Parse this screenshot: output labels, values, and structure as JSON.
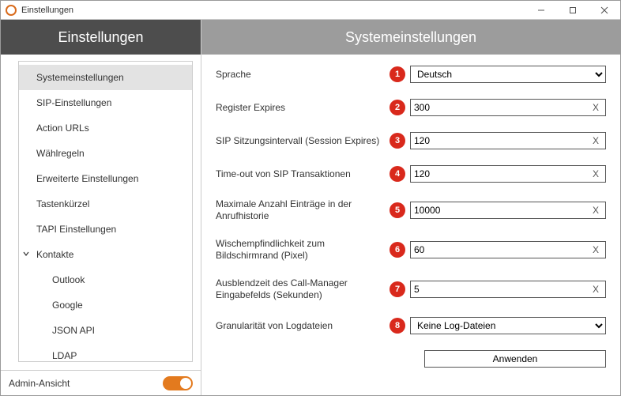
{
  "window": {
    "title": "Einstellungen"
  },
  "sidebar": {
    "header": "Einstellungen",
    "items": [
      {
        "label": "Systemeinstellungen",
        "active": true
      },
      {
        "label": "SIP-Einstellungen"
      },
      {
        "label": "Action URLs"
      },
      {
        "label": "Wählregeln"
      },
      {
        "label": "Erweiterte Einstellungen"
      },
      {
        "label": "Tastenkürzel"
      },
      {
        "label": "TAPI Einstellungen"
      },
      {
        "label": "Kontakte",
        "expanded": true,
        "children": [
          {
            "label": "Outlook"
          },
          {
            "label": "Google"
          },
          {
            "label": "JSON API"
          },
          {
            "label": "LDAP"
          }
        ]
      }
    ],
    "footer_label": "Admin-Ansicht",
    "toggle_on": true
  },
  "main": {
    "header": "Systemeinstellungen",
    "rows": [
      {
        "badge": "1",
        "label": "Sprache",
        "type": "select",
        "value": "Deutsch"
      },
      {
        "badge": "2",
        "label": "Register Expires",
        "type": "text",
        "value": "300"
      },
      {
        "badge": "3",
        "label": "SIP Sitzungsintervall (Session Expires)",
        "type": "text",
        "value": "120"
      },
      {
        "badge": "4",
        "label": "Time-out von SIP Transaktionen",
        "type": "text",
        "value": "120"
      },
      {
        "badge": "5",
        "label": "Maximale Anzahl Einträge in der Anrufhistorie",
        "type": "text",
        "value": "10000"
      },
      {
        "badge": "6",
        "label": "Wischempfindlichkeit zum Bildschirmrand (Pixel)",
        "type": "text",
        "value": "60"
      },
      {
        "badge": "7",
        "label": "Ausblendzeit des Call-Manager Eingabefelds (Sekunden)",
        "type": "text",
        "value": "5"
      },
      {
        "badge": "8",
        "label": "Granularität von Logdateien",
        "type": "select",
        "value": "Keine Log-Dateien"
      }
    ],
    "apply_label": "Anwenden"
  },
  "colors": {
    "header_dark": "#4d4d4d",
    "header_gray": "#9c9c9c",
    "badge": "#d9291c",
    "toggle": "#e37a1e"
  }
}
